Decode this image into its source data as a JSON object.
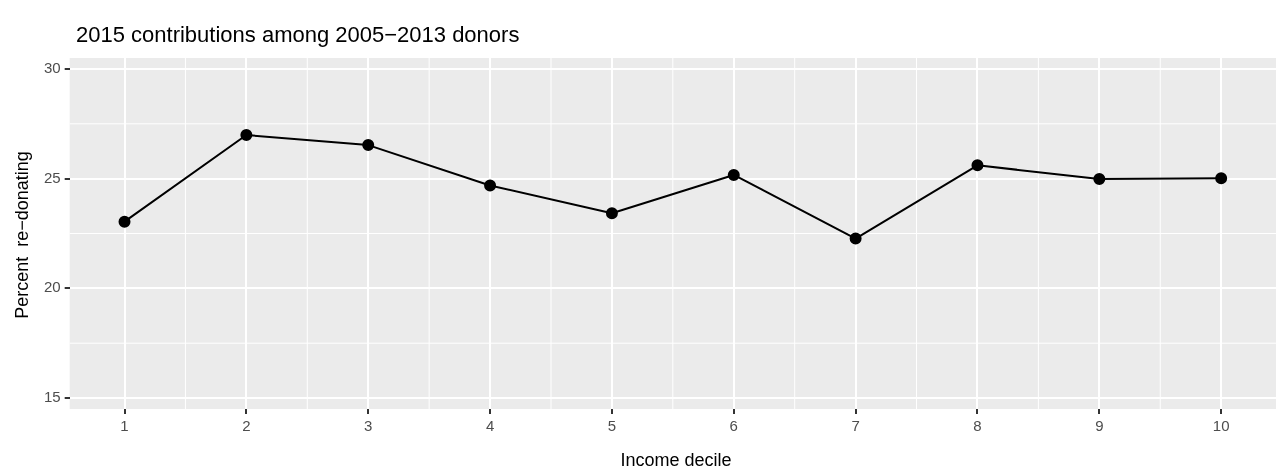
{
  "chart_data": {
    "type": "line",
    "title": "2015 contributions among 2005−2013 donors",
    "xlabel": "Income decile",
    "ylabel": "Percent  re−donating",
    "x": [
      1,
      2,
      3,
      4,
      5,
      6,
      7,
      8,
      9,
      10
    ],
    "series": [
      {
        "color": "#000000",
        "values": [
          23.04,
          26.99,
          26.53,
          24.69,
          23.42,
          25.17,
          22.27,
          25.61,
          24.98,
          25.02
        ]
      }
    ],
    "xlim": [
      0.55,
      10.45
    ],
    "xticks": [
      1,
      2,
      3,
      4,
      5,
      6,
      7,
      8,
      9,
      10
    ],
    "ylim": [
      14.5,
      30.5
    ],
    "yticks": [
      15,
      20,
      25,
      30
    ],
    "grid": true,
    "legend": false,
    "marker": "circle",
    "line_style": "solid"
  }
}
